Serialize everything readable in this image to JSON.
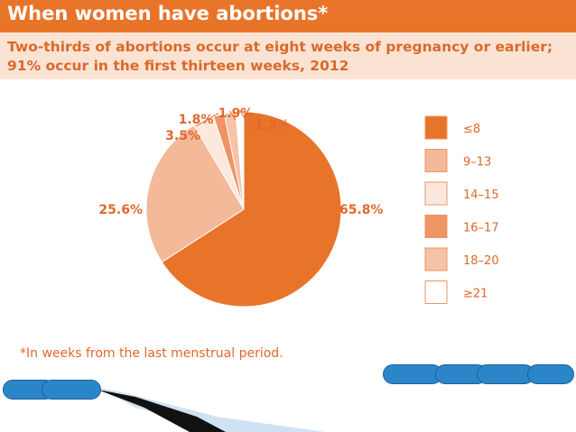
{
  "header": {
    "title": "When women have abortions*",
    "subtitle": "Two-thirds of abortions occur at eight weeks of pregnancy or earlier; 91% occur in the first thirteen weeks, 2012"
  },
  "footnote": "*In weeks from the last menstrual period.",
  "colors": {
    "header_bg": "#e8742a",
    "subtitle_bg": "#fbe3d3",
    "subtitle_text": "#d9692b",
    "footnote_text": "#e0682b",
    "nav_pill": "#2b86c9"
  },
  "chart_data": {
    "type": "pie",
    "title": "",
    "legend_position": "right",
    "slices": [
      {
        "label": "≤8",
        "value": 65.8,
        "value_label": "65.8%",
        "color": "#e8742a"
      },
      {
        "label": "9–13",
        "value": 25.6,
        "value_label": "25.6%",
        "color": "#f3b998"
      },
      {
        "label": "14–15",
        "value": 3.5,
        "value_label": "3.5%",
        "color": "#fde8dd"
      },
      {
        "label": "16–17",
        "value": 1.8,
        "value_label": "1.8%",
        "color": "#ef9464"
      },
      {
        "label": "18–20",
        "value": 1.9,
        "value_label": "1.9%",
        "color": "#f5c3a6"
      },
      {
        "label": "≥21",
        "value": 1.3,
        "value_label": "1.3%",
        "color": "#ffffff"
      }
    ]
  }
}
